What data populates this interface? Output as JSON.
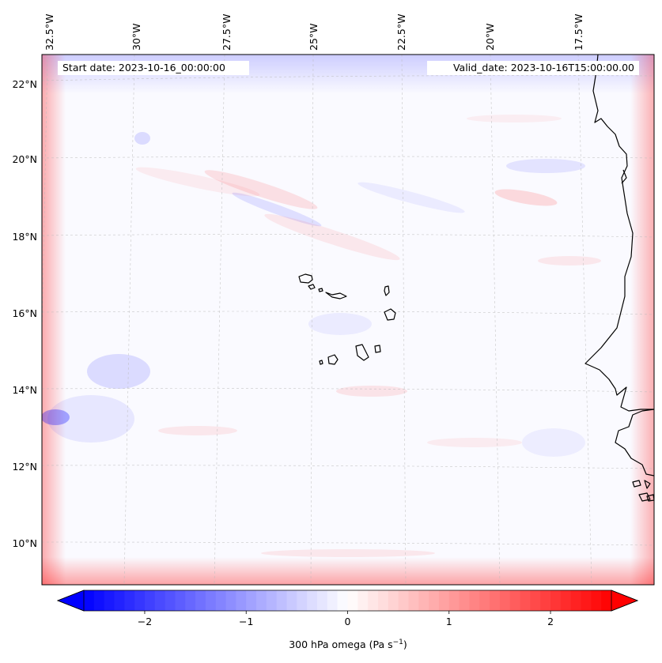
{
  "map": {
    "start_date_label": "Start date: 2023-10-16_00:00:00",
    "valid_date_label": "Valid_date: 2023-10-16T15:00:00.00",
    "longitude_ticks": [
      "32.5°W",
      "30°W",
      "27.5°W",
      "25°W",
      "22.5°W",
      "20°W",
      "17.5°W"
    ],
    "latitude_ticks": [
      "22°N",
      "20°N",
      "18°N",
      "16°N",
      "14°N",
      "12°N",
      "10°N"
    ],
    "longitude_values": [
      -32.5,
      -30,
      -27.5,
      -25,
      -22.5,
      -20,
      -17.5
    ],
    "latitude_values": [
      22,
      20,
      18,
      16,
      14,
      12,
      10
    ],
    "field": "300 hPa omega",
    "colormap": "bwr",
    "colors": {
      "min": "#0000ff",
      "mid": "#ffffff",
      "max": "#ff0000",
      "coastline": "#000000",
      "gridline": "#bbbbbb"
    }
  },
  "colorbar": {
    "label": "300 hPa omega (Pa s",
    "label_sup": "−1",
    "label_tail": ")",
    "tick_labels": [
      "−2",
      "−1",
      "0",
      "1",
      "2"
    ],
    "tick_values": [
      -2,
      -1,
      0,
      1,
      2
    ],
    "range": [
      -2.6,
      2.6
    ],
    "extend": "both"
  }
}
